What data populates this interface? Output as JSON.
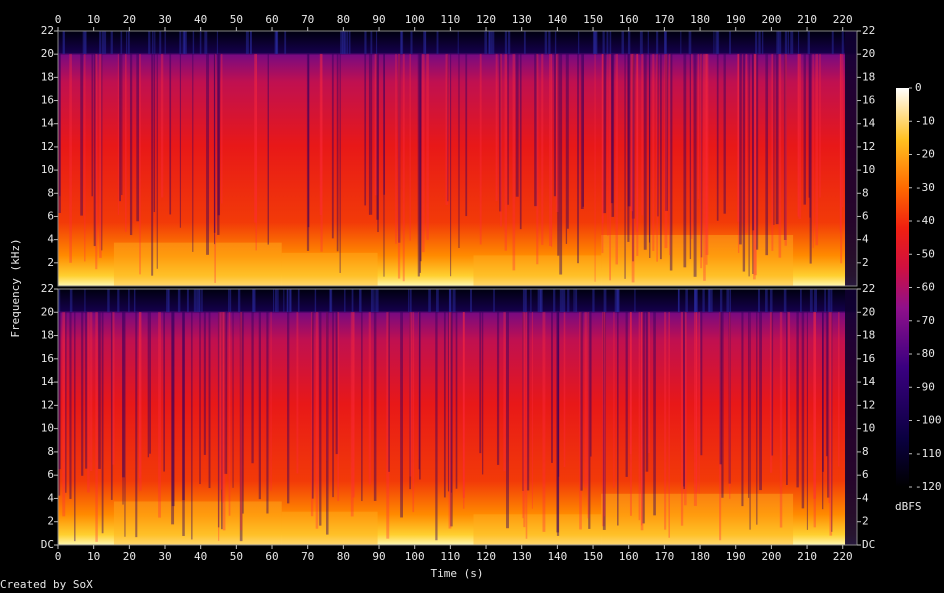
{
  "chart_data": [
    {
      "type": "spectrogram",
      "ylabel": "Frequency (kHz)",
      "xlim": [
        0,
        224
      ],
      "xticks": [
        0,
        10,
        20,
        30,
        40,
        50,
        60,
        70,
        80,
        90,
        100,
        110,
        120,
        130,
        140,
        150,
        160,
        170,
        180,
        190,
        200,
        210,
        220
      ],
      "ylim": [
        0,
        22
      ],
      "yticks": [
        2,
        4,
        6,
        8,
        10,
        12,
        14,
        16,
        18,
        20,
        22
      ],
      "colorbar": {
        "label": "dBFS",
        "lim": [
          -120,
          0
        ],
        "ticks": [
          -120,
          -110,
          -100,
          -90,
          -80,
          -70,
          -60,
          -50,
          -40,
          -30,
          -20,
          -10,
          0
        ]
      }
    },
    {
      "type": "spectrogram",
      "xlabel": "Time (s)",
      "xlim": [
        0,
        224
      ],
      "xticks": [
        0,
        10,
        20,
        30,
        40,
        50,
        60,
        70,
        80,
        90,
        100,
        110,
        120,
        130,
        140,
        150,
        160,
        170,
        180,
        190,
        200,
        210,
        220
      ],
      "ylim": [
        0,
        22
      ],
      "yticks": [
        {
          "value": 0,
          "label": "DC"
        },
        2,
        4,
        6,
        8,
        10,
        12,
        14,
        16,
        18,
        20,
        22
      ]
    }
  ],
  "footer": "Created by SoX"
}
